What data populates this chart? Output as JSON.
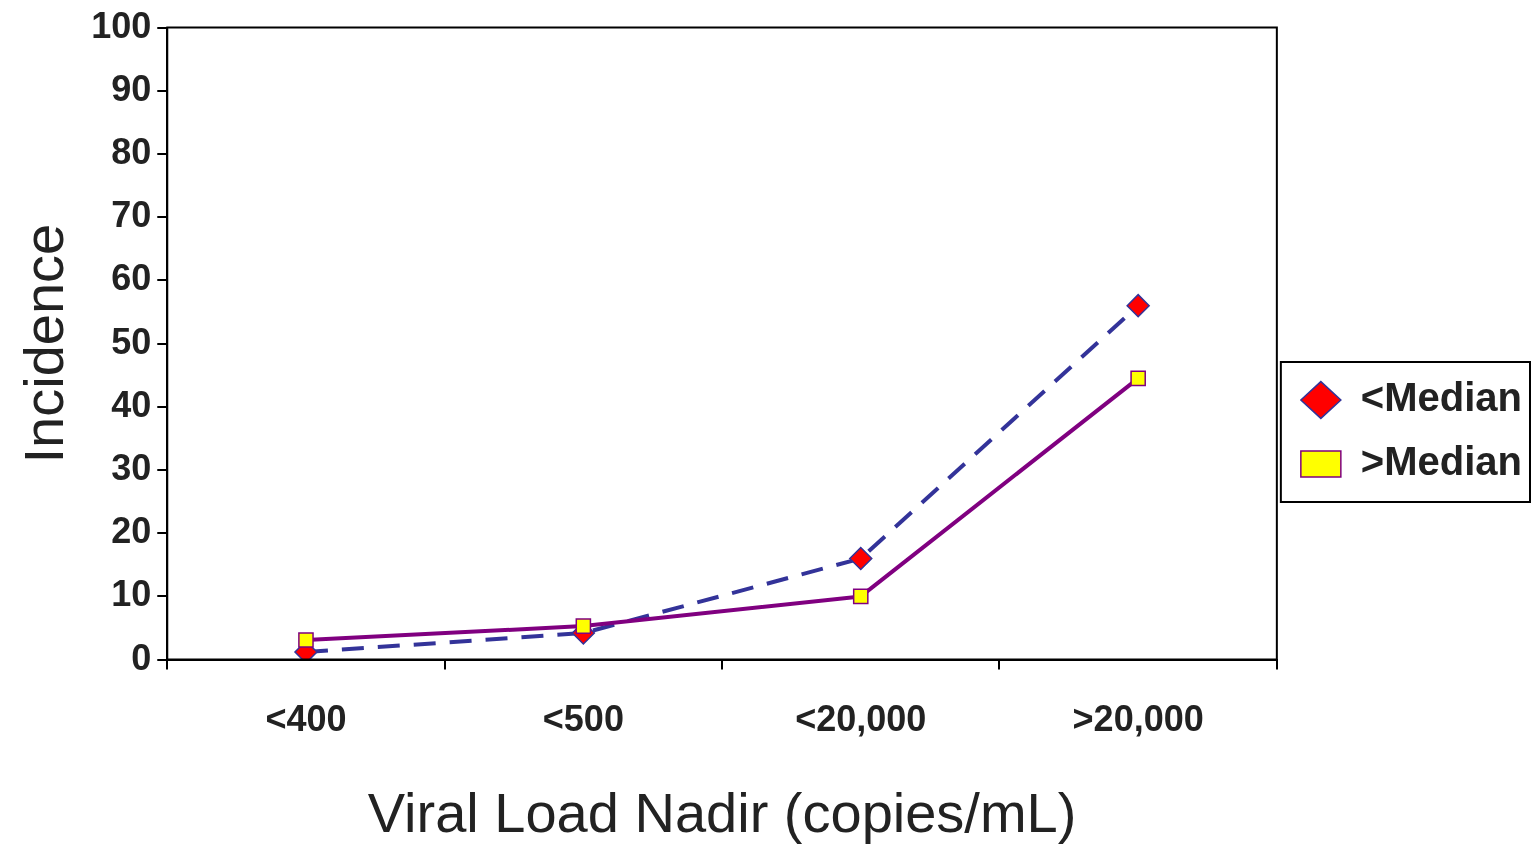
{
  "chart_data": {
    "type": "line",
    "xlabel": "Viral Load Nadir (copies/mL)",
    "ylabel": "Incidence",
    "categories": [
      "<400",
      "<500",
      "<20,000",
      ">20,000"
    ],
    "series": [
      {
        "name": "<Median",
        "color": "#333399",
        "marker": "diamond",
        "colors": [
          "#ff0000",
          "#ff0000",
          "#ff0000",
          "#ff0000"
        ],
        "line_style": "dashed",
        "values": [
          1.2,
          4.2,
          16,
          56
        ]
      },
      {
        "name": ">Median",
        "color": "#800080",
        "marker": "square",
        "colors": [
          "#ffff00",
          "#ffff00",
          "#ffff00",
          "#ffff00"
        ],
        "line_style": "solid",
        "values": [
          3.1,
          5.3,
          10,
          44.5
        ]
      }
    ],
    "ylim": [
      0,
      100
    ],
    "yticks": [
      0,
      10,
      20,
      30,
      40,
      50,
      60,
      70,
      80,
      90,
      100
    ],
    "grid": false,
    "legend": "right"
  }
}
